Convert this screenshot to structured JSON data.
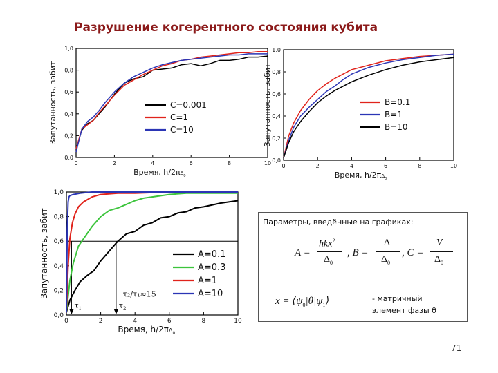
{
  "slide": {
    "title": "Разрушение когерентного состояния кубита",
    "page_number": "71"
  },
  "chart_data": [
    {
      "type": "line",
      "id": "top-left",
      "xlabel_main": "Время, h/2π",
      "xlabel_sub": "Δ",
      "xlabel_subsub": "0",
      "ylabel": "Запутанность, забит",
      "xlim": [
        0,
        10
      ],
      "ylim": [
        0,
        1
      ],
      "xticks": [
        "0",
        "2",
        "4",
        "6",
        "8",
        "10"
      ],
      "yticks": [
        "0,0",
        "0,2",
        "0,4",
        "0,6",
        "0,8",
        "1,0"
      ],
      "legend_position": "center-right",
      "series": [
        {
          "name": "C=0.001",
          "color": "#000000",
          "x": [
            0,
            0.3,
            0.6,
            0.9,
            1.2,
            1.5,
            2.0,
            2.5,
            3.0,
            3.5,
            4.0,
            4.5,
            5.0,
            5.5,
            6.0,
            6.5,
            7.0,
            7.5,
            8.0,
            8.5,
            9.0,
            9.5,
            10
          ],
          "y": [
            0.08,
            0.25,
            0.31,
            0.34,
            0.4,
            0.46,
            0.58,
            0.68,
            0.72,
            0.74,
            0.8,
            0.81,
            0.82,
            0.85,
            0.86,
            0.84,
            0.86,
            0.89,
            0.89,
            0.9,
            0.92,
            0.92,
            0.93
          ]
        },
        {
          "name": "C=1",
          "color": "#e0231b",
          "x": [
            0,
            0.3,
            0.6,
            0.9,
            1.2,
            1.5,
            2.0,
            2.5,
            3.0,
            3.5,
            4.0,
            4.5,
            5.0,
            5.5,
            6.0,
            6.5,
            7.0,
            7.5,
            8.0,
            8.5,
            9.0,
            9.5,
            10
          ],
          "y": [
            0.08,
            0.26,
            0.3,
            0.34,
            0.41,
            0.47,
            0.57,
            0.66,
            0.71,
            0.76,
            0.8,
            0.84,
            0.86,
            0.89,
            0.9,
            0.92,
            0.93,
            0.94,
            0.95,
            0.96,
            0.96,
            0.97,
            0.97
          ]
        },
        {
          "name": "C=10",
          "color": "#2b35b5",
          "x": [
            0,
            0.3,
            0.6,
            0.9,
            1.2,
            1.5,
            2.0,
            2.5,
            3.0,
            3.5,
            4.0,
            4.5,
            5.0,
            5.5,
            6.0,
            6.5,
            7.0,
            7.5,
            8.0,
            8.5,
            9.0,
            9.5,
            10
          ],
          "y": [
            0.05,
            0.26,
            0.33,
            0.37,
            0.43,
            0.5,
            0.6,
            0.68,
            0.74,
            0.78,
            0.82,
            0.85,
            0.87,
            0.89,
            0.9,
            0.91,
            0.92,
            0.93,
            0.94,
            0.94,
            0.95,
            0.95,
            0.95
          ]
        }
      ]
    },
    {
      "type": "line",
      "id": "top-right",
      "xlabel_main": "Время, h/2π",
      "xlabel_sub": "Δ",
      "xlabel_subsub": "0",
      "ylabel": "Запутанность, забит",
      "xlim": [
        0,
        10
      ],
      "ylim": [
        0,
        1
      ],
      "xticks": [
        "0",
        "2",
        "4",
        "6",
        "8",
        "10"
      ],
      "yticks": [
        "0,0",
        "0,2",
        "0,4",
        "0,6",
        "0,8",
        "1,0"
      ],
      "legend_position": "center-right",
      "series": [
        {
          "name": "B=0.1",
          "color": "#e0231b",
          "x": [
            0,
            0.3,
            0.6,
            1.0,
            1.5,
            2.0,
            2.5,
            3.0,
            3.5,
            4.0,
            5.0,
            6.0,
            7.0,
            8.0,
            9.0,
            10
          ],
          "y": [
            0.02,
            0.22,
            0.34,
            0.45,
            0.55,
            0.63,
            0.69,
            0.74,
            0.78,
            0.82,
            0.86,
            0.9,
            0.92,
            0.94,
            0.95,
            0.96
          ]
        },
        {
          "name": "B=1",
          "color": "#2b35b5",
          "x": [
            0,
            0.3,
            0.6,
            1.0,
            1.5,
            2.0,
            2.5,
            3.0,
            3.5,
            4.0,
            5.0,
            6.0,
            7.0,
            8.0,
            9.0,
            10
          ],
          "y": [
            0.02,
            0.18,
            0.3,
            0.4,
            0.48,
            0.55,
            0.62,
            0.67,
            0.73,
            0.78,
            0.84,
            0.88,
            0.91,
            0.93,
            0.95,
            0.96
          ]
        },
        {
          "name": "B=10",
          "color": "#000000",
          "x": [
            0,
            0.3,
            0.6,
            1.0,
            1.5,
            2.0,
            2.5,
            3.0,
            3.5,
            4.0,
            5.0,
            6.0,
            7.0,
            8.0,
            9.0,
            10
          ],
          "y": [
            0.02,
            0.16,
            0.26,
            0.35,
            0.44,
            0.52,
            0.58,
            0.63,
            0.67,
            0.71,
            0.77,
            0.82,
            0.86,
            0.89,
            0.91,
            0.93
          ]
        }
      ]
    },
    {
      "type": "line",
      "id": "bottom-left",
      "xlabel_main": "Время, h/2π",
      "xlabel_sub": "Δ",
      "xlabel_subsub": "0",
      "ylabel": "Запутанность, забит",
      "xlim": [
        0,
        10
      ],
      "ylim": [
        0,
        1
      ],
      "xticks": [
        "0",
        "2",
        "4",
        "6",
        "8",
        "10"
      ],
      "yticks": [
        "0,0",
        "0,2",
        "0,4",
        "0,6",
        "0,8",
        "1,0"
      ],
      "legend_position": "lower-right",
      "reference_line_y": 0.6,
      "annotations": {
        "tau1_label": "τ",
        "tau1_sub": "1",
        "tau2_label": "τ",
        "tau2_sub": "2",
        "tau1_x": 0.3,
        "tau2_x": 2.9,
        "ratio_text": "τ₂/τ₁≈15"
      },
      "series": [
        {
          "name": "A=0.1",
          "color": "#000000",
          "x": [
            0,
            0.2,
            0.5,
            0.8,
            1.2,
            1.6,
            2.0,
            2.5,
            3.0,
            3.5,
            4.0,
            4.5,
            5.0,
            5.5,
            6.0,
            6.5,
            7.0,
            7.5,
            8.0,
            9.0,
            10
          ],
          "y": [
            0.02,
            0.12,
            0.2,
            0.27,
            0.32,
            0.36,
            0.44,
            0.52,
            0.6,
            0.66,
            0.68,
            0.73,
            0.75,
            0.79,
            0.8,
            0.83,
            0.84,
            0.87,
            0.88,
            0.91,
            0.93
          ]
        },
        {
          "name": "A=0.3",
          "color": "#3cc43c",
          "x": [
            0,
            0.2,
            0.4,
            0.7,
            1.0,
            1.5,
            2.0,
            2.5,
            3.0,
            3.5,
            4.0,
            4.5,
            5.0,
            6.0,
            7.0,
            8.0,
            10
          ],
          "y": [
            0.02,
            0.28,
            0.42,
            0.56,
            0.62,
            0.72,
            0.8,
            0.85,
            0.87,
            0.9,
            0.93,
            0.95,
            0.96,
            0.98,
            0.99,
            0.99,
            0.99
          ]
        },
        {
          "name": "A=1",
          "color": "#e0231b",
          "x": [
            0,
            0.1,
            0.2,
            0.35,
            0.5,
            0.7,
            1.0,
            1.5,
            2.0,
            3.0,
            4.0,
            6.0,
            10
          ],
          "y": [
            0.02,
            0.4,
            0.62,
            0.75,
            0.82,
            0.88,
            0.92,
            0.96,
            0.98,
            0.99,
            0.99,
            1.0,
            1.0
          ]
        },
        {
          "name": "A=10",
          "color": "#2b35b5",
          "x": [
            0,
            0.05,
            0.1,
            0.15,
            0.2,
            0.4,
            0.8,
            1.5,
            3.0,
            10
          ],
          "y": [
            0.02,
            0.7,
            0.92,
            0.96,
            0.97,
            0.98,
            0.99,
            1.0,
            1.0,
            1.0
          ]
        }
      ]
    }
  ],
  "parameters_box": {
    "title": "Параметры, введённые на графиках:",
    "formula_a_lhs": "A =",
    "formula_a_num": "ħkx",
    "formula_a_sup": "2",
    "formula_den": "Δ",
    "formula_den_sub": "0",
    "formula_b_lhs": ", B =",
    "formula_b_num": "Δ",
    "formula_c_lhs": ", C =",
    "formula_c_num": "V",
    "formula_x_text": "x = ⟨ψ",
    "formula_x_sub0": "0",
    "formula_x_mid": "|θ|ψ",
    "formula_x_sub1": "1",
    "formula_x_end": "⟩",
    "note_line1": "- матричный",
    "note_line2": "элемент фазы θ"
  }
}
